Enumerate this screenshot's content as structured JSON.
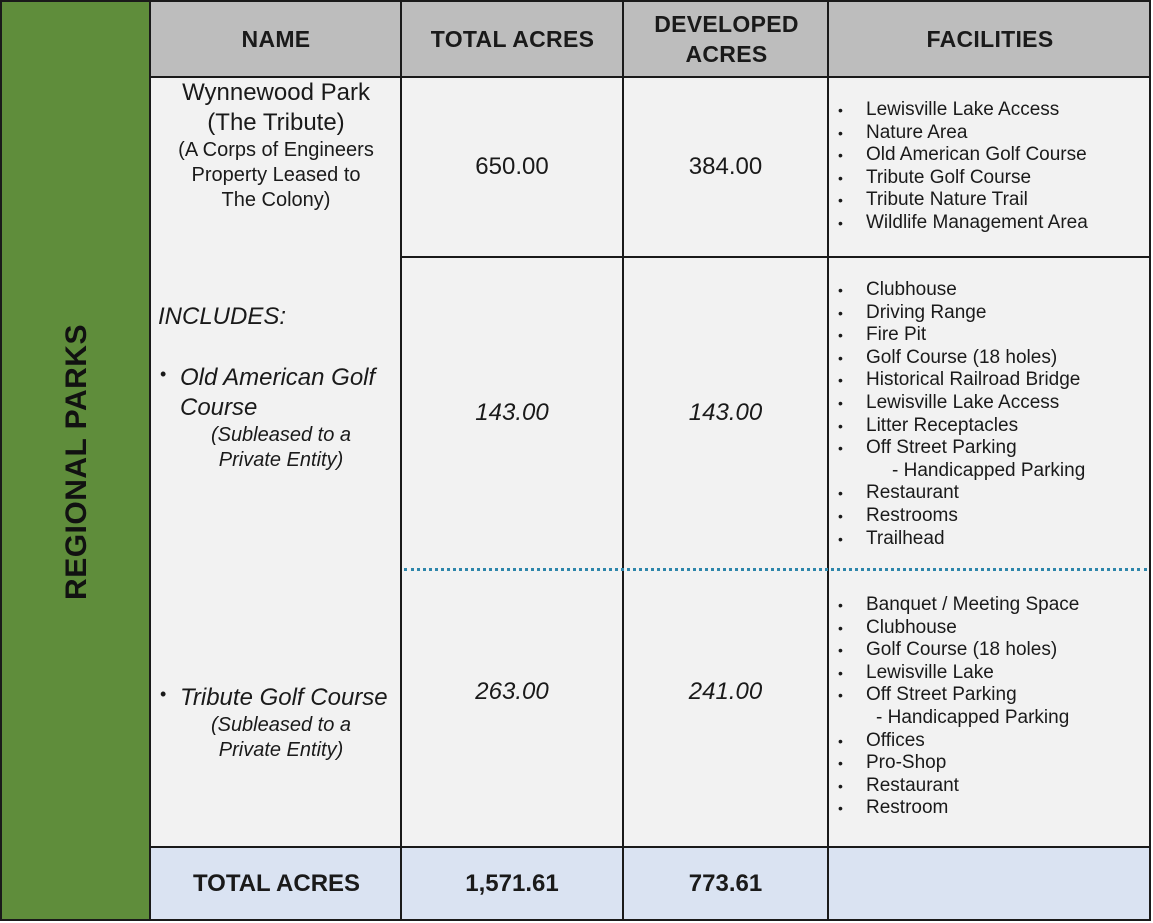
{
  "side_label": "REGIONAL PARKS",
  "headers": {
    "name": "NAME",
    "total_acres": "TOTAL ACRES",
    "developed_acres": "DEVELOPED ACRES",
    "facilities": "FACILITIES"
  },
  "wynnewood": {
    "title_line1": "Wynnewood Park",
    "title_line2": "(The Tribute)",
    "note_line1": "(A Corps of Engineers",
    "note_line2": "Property Leased to",
    "note_line3": "The Colony)",
    "total_acres": "650.00",
    "developed_acres": "384.00",
    "facilities": [
      "Lewisville Lake Access",
      "Nature Area",
      "Old American Golf Course",
      "Tribute Golf Course",
      "Tribute Nature Trail",
      "Wildlife Management Area"
    ]
  },
  "includes_label": "INCLUDES:",
  "old_american": {
    "name_line1": "Old American Golf",
    "name_line2": "Course",
    "note_line1": "(Subleased to a",
    "note_line2": "Private Entity)",
    "total_acres": "143.00",
    "developed_acres": "143.00",
    "facilities": [
      "Clubhouse",
      "Driving Range",
      "Fire Pit",
      "Golf Course  (18 holes)",
      "Historical Railroad Bridge",
      "Lewisville Lake Access",
      "Litter Receptacles",
      "Off Street Parking"
    ],
    "facility_sub": "-  Handicapped Parking",
    "facilities_after": [
      "Restaurant",
      "Restrooms",
      "Trailhead"
    ]
  },
  "tribute": {
    "name": "Tribute Golf Course",
    "note_line1": "(Subleased to a",
    "note_line2": "Private Entity)",
    "total_acres": "263.00",
    "developed_acres": "241.00",
    "facilities": [
      "Banquet / Meeting Space",
      "Clubhouse",
      "Golf Course (18 holes)",
      "Lewisville Lake",
      "Off Street Parking"
    ],
    "facility_sub": "- Handicapped Parking",
    "facilities_after": [
      "Offices",
      "Pro-Shop",
      "Restaurant",
      "Restroom"
    ]
  },
  "totals": {
    "label": "TOTAL ACRES",
    "total_acres": "1,571.61",
    "developed_acres": "773.61"
  }
}
